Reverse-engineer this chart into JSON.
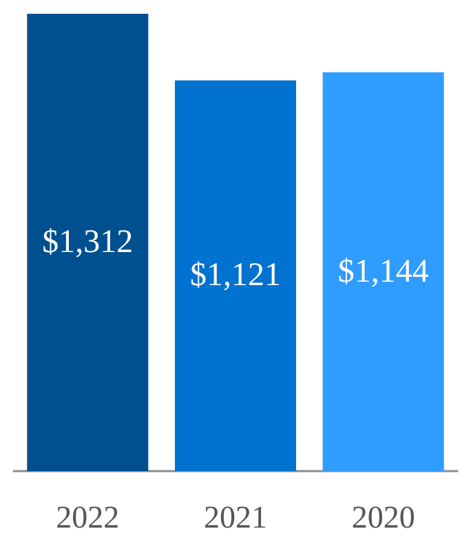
{
  "chart_data": {
    "type": "bar",
    "categories": [
      "2022",
      "2021",
      "2020"
    ],
    "values": [
      1312,
      1121,
      1144
    ],
    "value_labels": [
      "$1,312",
      "$1,121",
      "$1,144"
    ],
    "colors": [
      "#004f8f",
      "#0072d0",
      "#2f9cff"
    ]
  }
}
